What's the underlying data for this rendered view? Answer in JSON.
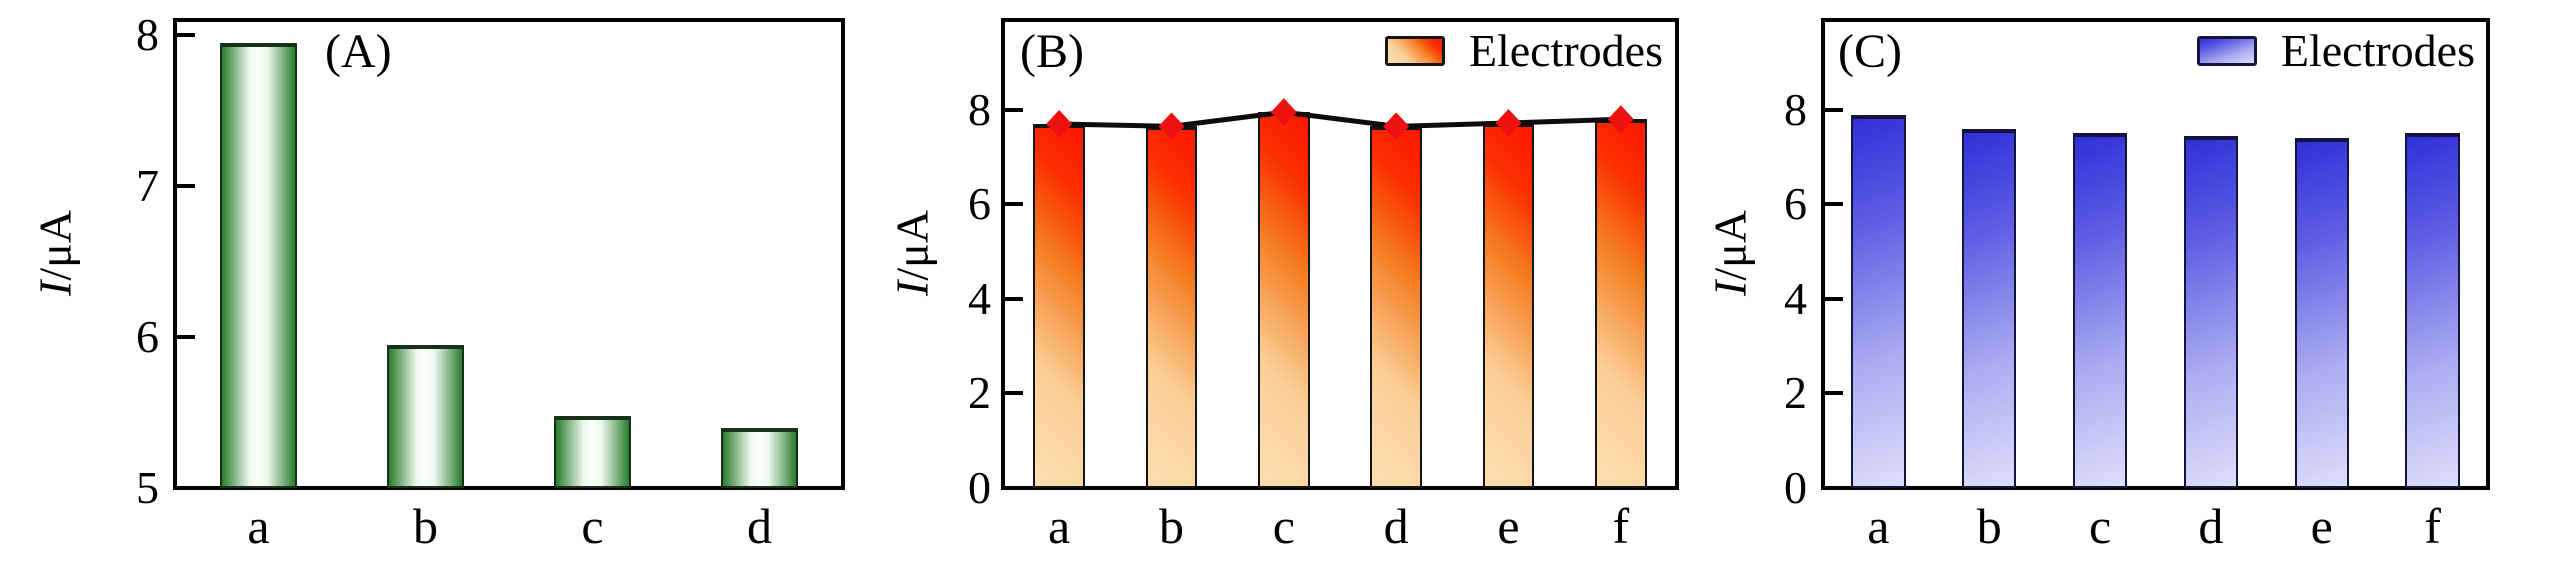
{
  "figure": {
    "background": "#ffffff",
    "text_color": "#000000"
  },
  "chart_data": [
    {
      "type": "bar",
      "panel_label": "(A)",
      "ylabel_italic": "I",
      "ylabel_rest": "/μA",
      "xlabel": "",
      "title": "",
      "categories": [
        "a",
        "b",
        "c",
        "d"
      ],
      "values": [
        7.95,
        5.95,
        5.48,
        5.4
      ],
      "ylim": [
        5,
        8.1
      ],
      "yticks": [
        5,
        6,
        7,
        8
      ],
      "grid": false,
      "legend": null,
      "bar_style": "green-cylinder",
      "bar_colors": [
        "#2a7c2e",
        "#eef9ee",
        "#fcfffc"
      ],
      "bar_outline": "#16301a"
    },
    {
      "type": "bar-line",
      "panel_label": "(B)",
      "ylabel_italic": "I",
      "ylabel_rest": "/μA",
      "xlabel": "",
      "title": "",
      "categories": [
        "a",
        "b",
        "c",
        "d",
        "e",
        "f"
      ],
      "values": [
        7.7,
        7.65,
        7.95,
        7.65,
        7.72,
        7.8
      ],
      "line_values": [
        7.7,
        7.65,
        7.95,
        7.65,
        7.72,
        7.8
      ],
      "ylim": [
        0,
        9.9
      ],
      "yticks": [
        0,
        2,
        4,
        6,
        8
      ],
      "grid": false,
      "legend": "Electrodes",
      "legend_position": "upper right",
      "marker": "diamond",
      "marker_color": "#ee1111",
      "line_color": "#0d0d0d",
      "bar_style": "warm-diagonal",
      "bar_colors": [
        "#fcdfb0",
        "#fbd098",
        "#f57b1e",
        "#fb3000",
        "#ff1600"
      ],
      "bar_outline": "#141414"
    },
    {
      "type": "bar",
      "panel_label": "(C)",
      "ylabel_italic": "I",
      "ylabel_rest": "/μA",
      "xlabel": "",
      "title": "",
      "categories": [
        "a",
        "b",
        "c",
        "d",
        "e",
        "f"
      ],
      "values": [
        7.9,
        7.6,
        7.5,
        7.45,
        7.4,
        7.5
      ],
      "ylim": [
        0,
        9.9
      ],
      "yticks": [
        0,
        2,
        4,
        6,
        8
      ],
      "grid": false,
      "legend": "Electrodes",
      "legend_position": "upper right",
      "bar_style": "cool-diagonal",
      "bar_colors": [
        "#3030d8",
        "#5c5ce4",
        "#ababf1",
        "#dedefb"
      ],
      "bar_outline": "#14143c"
    }
  ]
}
